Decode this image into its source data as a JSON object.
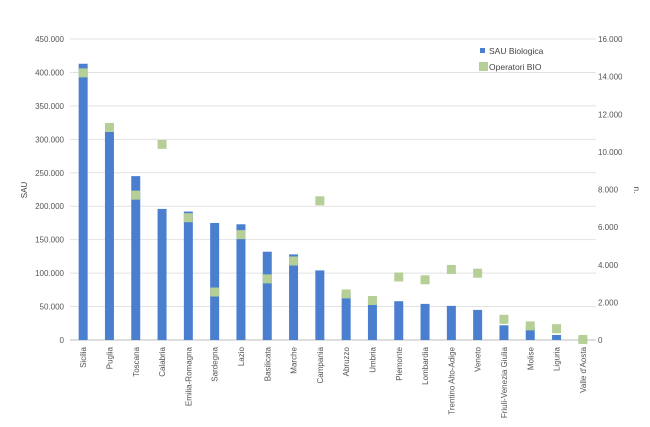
{
  "chart_data": {
    "type": "bar",
    "categories": [
      "Sicilia",
      "Puglia",
      "Toscana",
      "Calabria",
      "Emilia-Romagna",
      "Sardegna",
      "Lazio",
      "Basilicata",
      "Marche",
      "Campania",
      "Abruzzo",
      "Umbria",
      "Piemonte",
      "Lombardia",
      "Trentino Alto-Adige",
      "Veneto",
      "Friuli-Venezia Giulia",
      "Molise",
      "Liguria",
      "Valle d'Aosta"
    ],
    "series": [
      {
        "name": "SAU Biologica",
        "kind": "bar",
        "axis": "left",
        "color": "#4a7fd0",
        "values": [
          413000,
          311000,
          245000,
          196000,
          192000,
          175000,
          173000,
          132000,
          128000,
          104000,
          70000,
          59000,
          58000,
          54000,
          51000,
          45000,
          22000,
          19000,
          7500,
          2000
        ]
      },
      {
        "name": "Operatori BIO",
        "kind": "scatter",
        "axis": "right",
        "color": "#b5cf96",
        "values": [
          14200,
          11300,
          7700,
          10400,
          6500,
          2550,
          5600,
          3250,
          4200,
          7400,
          2450,
          2100,
          3350,
          3200,
          3750,
          3550,
          1100,
          750,
          600,
          30
        ]
      }
    ],
    "ylabel": "SAU",
    "y2label": "n.",
    "ylim": [
      0,
      450000
    ],
    "y2lim": [
      0,
      16000
    ],
    "yticks": [
      "0",
      "50.000",
      "100.000",
      "150.000",
      "200.000",
      "250.000",
      "300.000",
      "350.000",
      "400.000",
      "450.000"
    ],
    "y2ticks": [
      "0",
      "2.000",
      "4.000",
      "6.000",
      "8.000",
      "10.000",
      "12.000",
      "14.000",
      "16.000"
    ],
    "grid": true,
    "legend": "top-right"
  }
}
